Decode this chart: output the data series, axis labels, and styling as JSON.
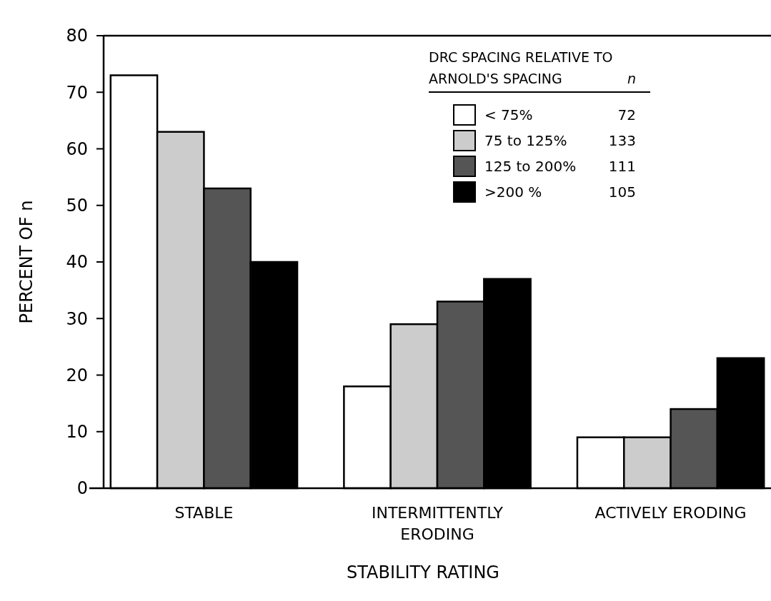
{
  "chart_data": {
    "type": "bar",
    "xlabel": "STABILITY RATING",
    "ylabel": "PERCENT OF n",
    "legend_title": "DRC SPACING RELATIVE TO ARNOLD'S SPACING",
    "categories": [
      "STABLE",
      "INTERMITTENTLY ERODING",
      "ACTIVELY ERODING"
    ],
    "series": [
      {
        "name": "< 75%",
        "color": "#ffffff",
        "values": [
          73,
          18,
          9
        ]
      },
      {
        "name": "75 to 125%",
        "color": "#cccccc",
        "values": [
          63,
          29,
          9
        ]
      },
      {
        "name": "125 to 200%",
        "color": "#555555",
        "values": [
          53,
          33,
          14
        ]
      },
      {
        "name": ">200 %",
        "color": "#000000",
        "values": [
          40,
          37,
          23
        ]
      }
    ],
    "annotations": [
      "n",
      "72",
      "133",
      "111",
      "105"
    ],
    "ylim": [
      0,
      80
    ],
    "yticks": [
      0,
      10,
      20,
      30,
      40,
      50,
      60,
      70,
      80
    ],
    "grid": false,
    "legend": "top right"
  }
}
